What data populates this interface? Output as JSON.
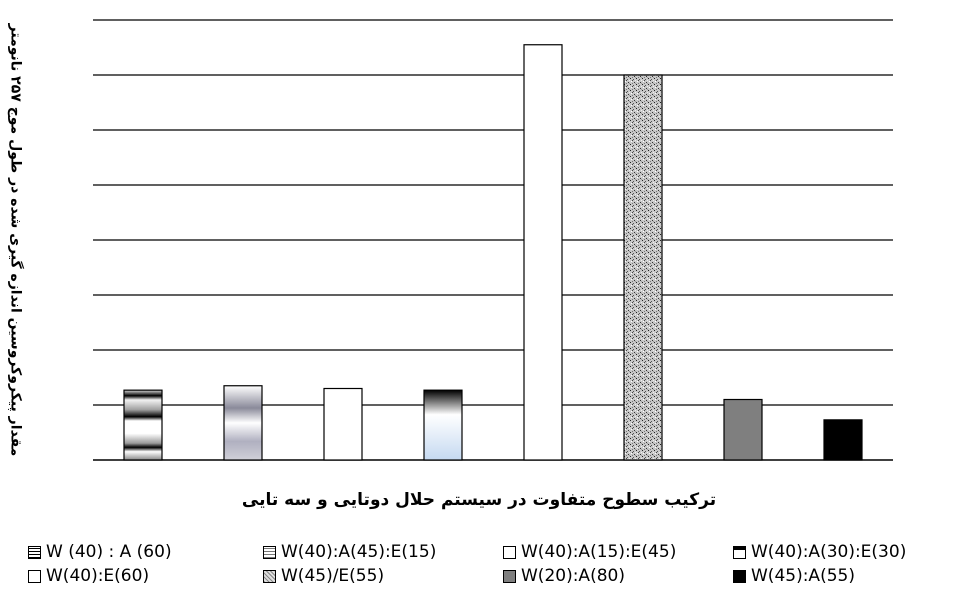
{
  "chart_data": {
    "type": "bar",
    "title": "",
    "ylabel": "مقدار پیکروکروسین اندازه گیری شده در طول موج ۲۵۷ نانومتر",
    "xlabel": "ترکیب سطوح متفاوت در سیستم حلال دوتایی و سه تایی",
    "ylim": [
      0,
      8
    ],
    "grid": true,
    "legend_position": "bottom",
    "categories": [
      "W (40) : A (60)",
      "W(40):A(45):E(15)",
      "W(40):A(15):E(45)",
      "W(40):A(30):E(30)",
      "W(40):E(60)",
      "W(45)/E(55)",
      "W(20):A(80)",
      "W(45):A(55)"
    ],
    "values": [
      1.27,
      1.35,
      1.3,
      1.27,
      7.55,
      7.0,
      1.1,
      0.73
    ],
    "styles": [
      "stripes",
      "gray-gradient",
      "white",
      "blue-gradient",
      "white",
      "speckled",
      "gray",
      "black"
    ],
    "colors": {
      "gridline": "#000000",
      "bar_border": "#000000",
      "gray_fill": "#7f7f7f",
      "black_fill": "#000000",
      "blue_fill": "#c5d9f1"
    }
  }
}
